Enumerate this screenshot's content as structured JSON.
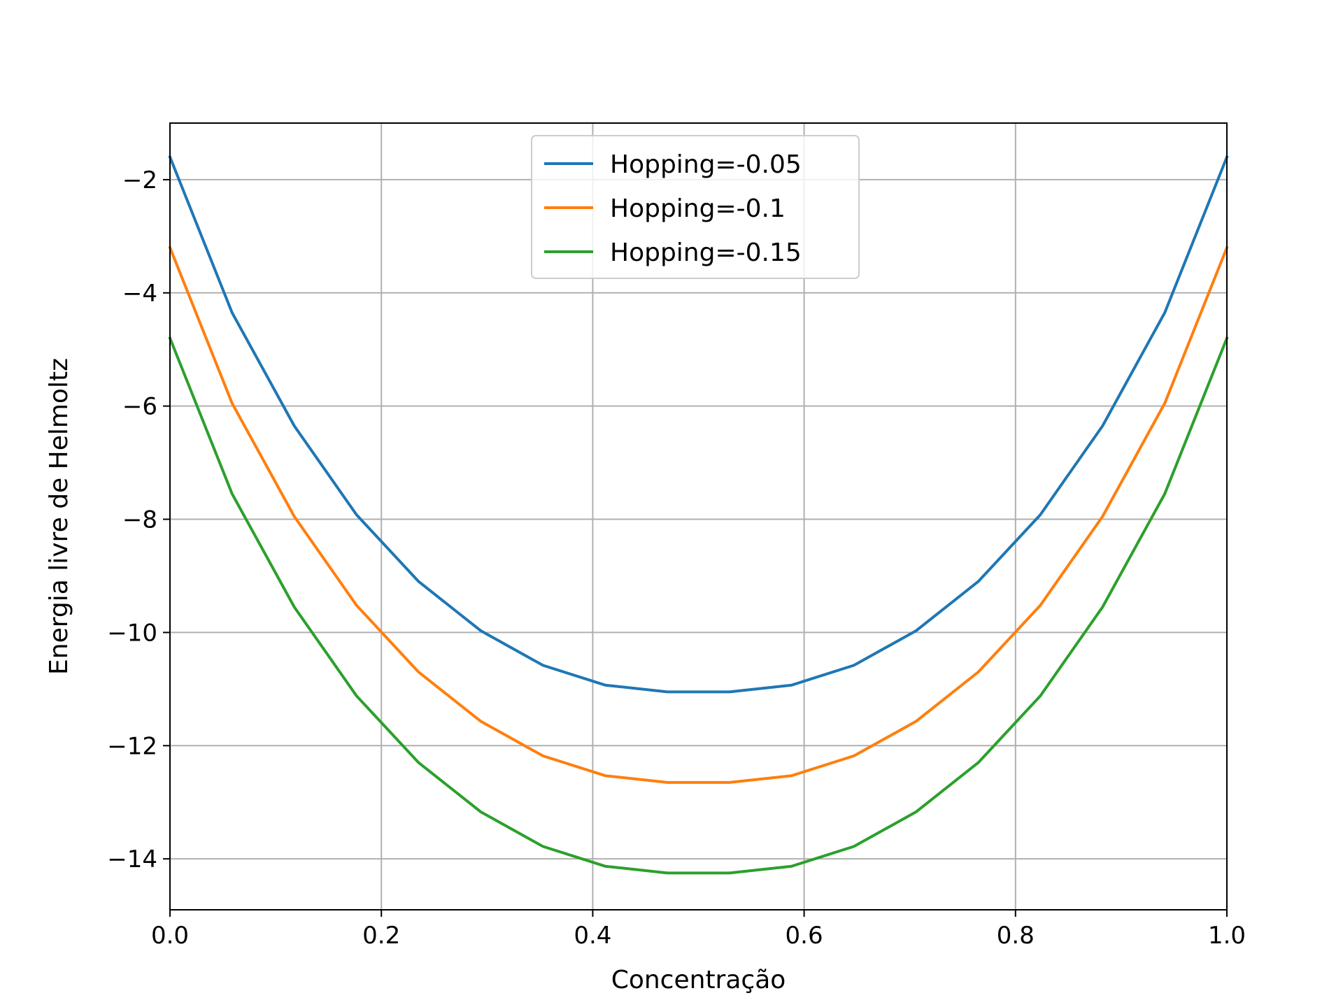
{
  "chart_data": {
    "type": "line",
    "title": "",
    "xlabel": "Concentração",
    "ylabel": "Energia livre de Helmoltz",
    "xlim": [
      0.0,
      1.0
    ],
    "ylim": [
      -14.9,
      -1.0
    ],
    "xticks": [
      0.0,
      0.2,
      0.4,
      0.6,
      0.8,
      1.0
    ],
    "xtick_labels": [
      "0.0",
      "0.2",
      "0.4",
      "0.6",
      "0.8",
      "1.0"
    ],
    "yticks": [
      -2,
      -4,
      -6,
      -8,
      -10,
      -12,
      -14
    ],
    "ytick_labels": [
      "−2",
      "−4",
      "−6",
      "−8",
      "−10",
      "−12",
      "−14"
    ],
    "grid": true,
    "legend_position": "top-center",
    "x": [
      0.0,
      0.0588,
      0.1176,
      0.1765,
      0.2353,
      0.2941,
      0.3529,
      0.4118,
      0.4706,
      0.5294,
      0.5882,
      0.6471,
      0.7059,
      0.7647,
      0.8235,
      0.8824,
      0.9412,
      1.0
    ],
    "series": [
      {
        "name": "Hopping=-0.05",
        "color": "#1f77b4",
        "values": [
          -1.6,
          -4.35,
          -6.35,
          -7.92,
          -9.1,
          -9.97,
          -10.58,
          -10.93,
          -11.05,
          -11.05,
          -10.93,
          -10.58,
          -9.97,
          -9.1,
          -7.92,
          -6.35,
          -4.35,
          -1.6
        ]
      },
      {
        "name": "Hopping=-0.1",
        "color": "#ff7f0e",
        "values": [
          -3.2,
          -5.95,
          -7.95,
          -9.52,
          -10.7,
          -11.57,
          -12.18,
          -12.53,
          -12.65,
          -12.65,
          -12.53,
          -12.18,
          -11.57,
          -10.7,
          -9.52,
          -7.95,
          -5.95,
          -3.2
        ]
      },
      {
        "name": "Hopping=-0.15",
        "color": "#2ca02c",
        "values": [
          -4.8,
          -7.55,
          -9.55,
          -11.12,
          -12.3,
          -13.17,
          -13.78,
          -14.13,
          -14.25,
          -14.25,
          -14.13,
          -13.78,
          -13.17,
          -12.3,
          -11.12,
          -9.55,
          -7.55,
          -4.8
        ]
      }
    ]
  }
}
